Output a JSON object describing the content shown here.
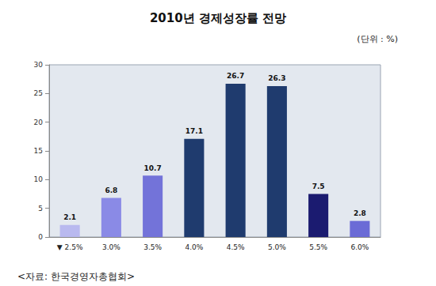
{
  "chart_data": {
    "type": "bar",
    "title": "2010년 경제성장률 전망",
    "annotations": [
      "(단위 : %)",
      "<자료: 한국경영자총협회>"
    ],
    "categories": [
      "▼ 2.5%",
      "3.0%",
      "3.5%",
      "4.0%",
      "4.5%",
      "5.0%",
      "5.5%",
      "6.0%"
    ],
    "values": [
      2.1,
      6.8,
      10.7,
      17.1,
      26.7,
      26.3,
      7.5,
      2.8
    ],
    "colors": [
      "#b9b9ef",
      "#8a8ae6",
      "#7373d9",
      "#1f3b6e",
      "#1f3b6e",
      "#1f3b6e",
      "#1b1b70",
      "#6b6bd6"
    ],
    "ylim": [
      0,
      30
    ],
    "yticks": [
      0,
      5,
      10,
      15,
      20,
      25,
      30
    ],
    "grid": false,
    "data_labels": true
  }
}
